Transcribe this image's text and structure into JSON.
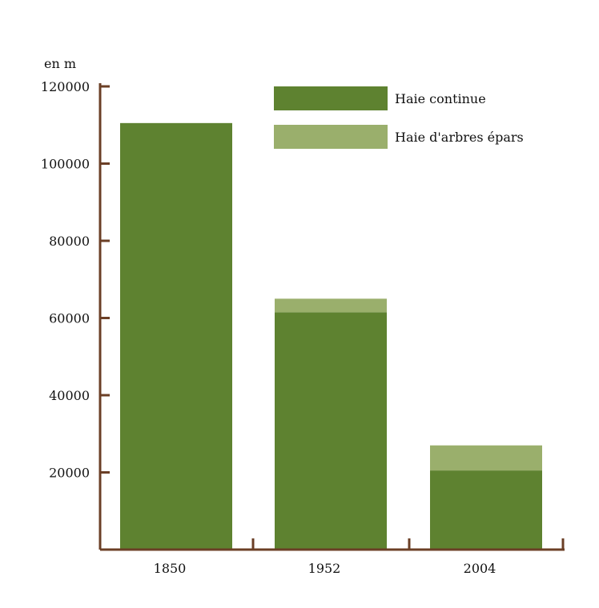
{
  "chart_data": {
    "type": "bar",
    "stacked": true,
    "title": "",
    "xlabel": "",
    "ylabel": "en m",
    "categories": [
      "1850",
      "1952",
      "2004"
    ],
    "series": [
      {
        "name": "Haie continue",
        "values": [
          110500,
          61500,
          20500
        ]
      },
      {
        "name": "Haie d'arbres épars",
        "values": [
          0,
          3500,
          6500
        ]
      }
    ],
    "ylim": [
      0,
      120000
    ],
    "yticks": [
      20000,
      40000,
      60000,
      80000,
      100000,
      120000
    ],
    "ytick_labels": [
      "20000",
      "40000",
      "60000",
      "80000",
      "100000",
      "120000"
    ],
    "grid": false,
    "legend": "top-right",
    "colors": {
      "series": [
        "#5e8230",
        "#9aaf6c"
      ],
      "axis": "#6b3f26"
    }
  }
}
